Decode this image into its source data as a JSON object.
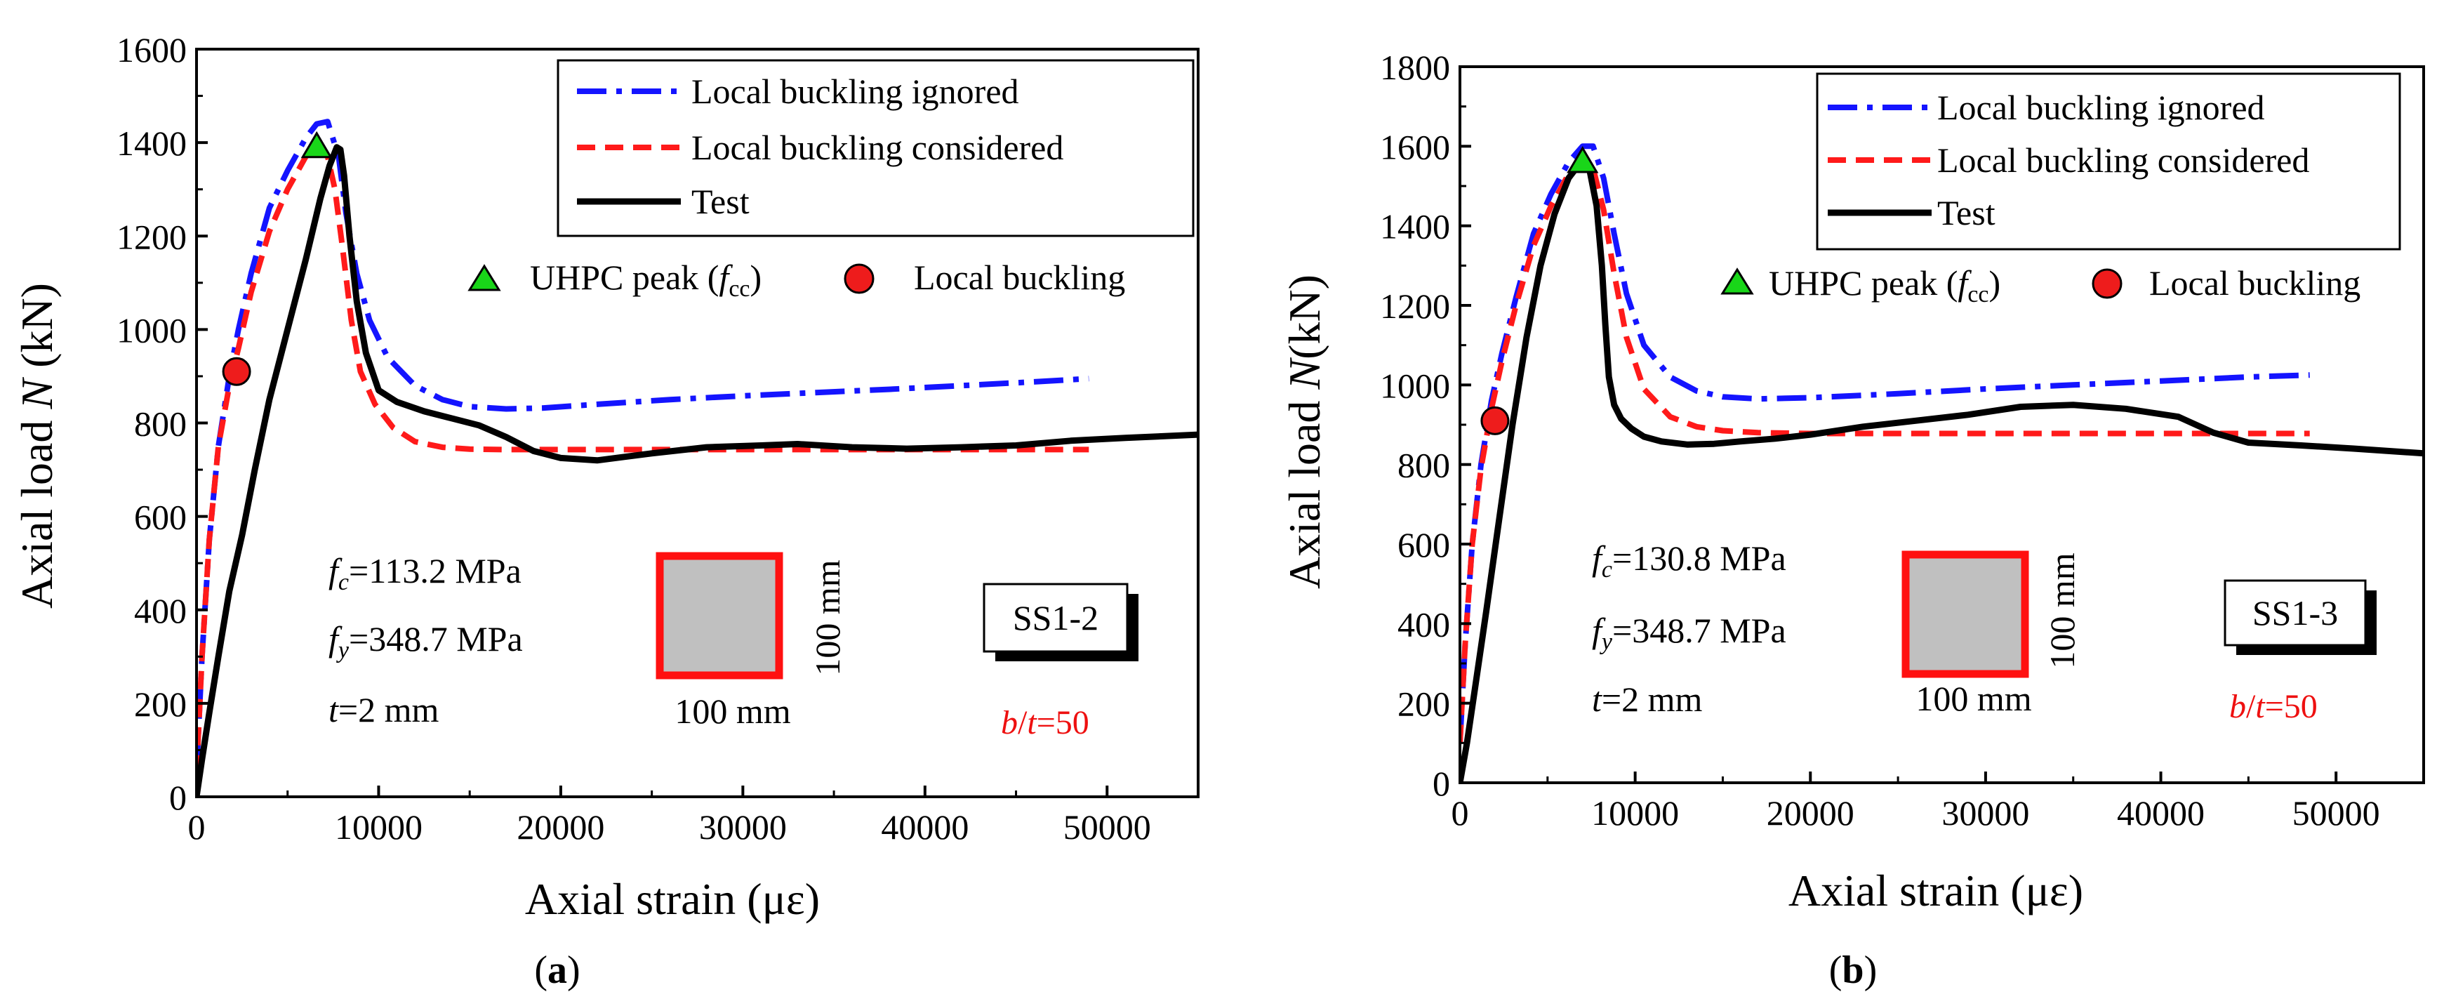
{
  "colors": {
    "ignored": "#1414ff",
    "considered": "#ff1a1a",
    "test": "#000000",
    "peak_marker": "#19d619",
    "buckling_marker": "#ee1c1c",
    "section_fill": "#c0c0c0",
    "section_border": "#ff1010",
    "bt_text": "#ee1010"
  },
  "chart_data": [
    {
      "type": "line",
      "panel_label": "a",
      "xlabel": "Axial strain (με)",
      "ylabel_prefix": "Axial load ",
      "ylabel_var": "N",
      "ylabel_suffix": " (kN)",
      "xlim": [
        0,
        55000
      ],
      "ylim": [
        0,
        1600
      ],
      "xticks": [
        0,
        10000,
        20000,
        30000,
        40000,
        50000
      ],
      "yticks": [
        0,
        200,
        400,
        600,
        800,
        1000,
        1200,
        1400,
        1600
      ],
      "legend": {
        "ignored": "Local buckling ignored",
        "considered": "Local buckling considered",
        "test": "Test"
      },
      "marker_legend": {
        "peak_pre": "UHPC peak (",
        "peak_var": "f",
        "peak_sub": "cc",
        "peak_post": ")",
        "buckling": "Local buckling"
      },
      "props": {
        "fc_var": "f",
        "fc_sub": "c",
        "fc_val": "=113.2 MPa",
        "fy_var": "f",
        "fy_sub": "y",
        "fy_val": "=348.7 MPa",
        "t_var": "t",
        "t_val": "=2 mm"
      },
      "section": {
        "width_label": "100 mm",
        "height_label": "100 mm"
      },
      "specimen": "SS1-2",
      "bt": {
        "b": "b",
        "slash": "/",
        "t": "t",
        "val": "=50"
      },
      "series": [
        {
          "name": "Local buckling ignored",
          "key": "ignored",
          "x": [
            0,
            300,
            700,
            1200,
            1800,
            2300,
            3000,
            4000,
            5000,
            6000,
            6600,
            7200,
            7800,
            8200,
            8800,
            9500,
            10500,
            12000,
            13500,
            15000,
            17000,
            19000,
            22000,
            26000,
            30000,
            34000,
            38000,
            42000,
            46000,
            49000
          ],
          "y": [
            50,
            300,
            550,
            750,
            900,
            1000,
            1120,
            1260,
            1340,
            1410,
            1440,
            1445,
            1370,
            1250,
            1120,
            1020,
            940,
            880,
            850,
            835,
            830,
            832,
            840,
            850,
            858,
            865,
            872,
            880,
            888,
            895
          ]
        },
        {
          "name": "Local buckling considered",
          "key": "considered",
          "x": [
            0,
            300,
            700,
            1200,
            1800,
            2300,
            3000,
            4000,
            5000,
            6000,
            6600,
            7200,
            7600,
            8000,
            8500,
            9000,
            9800,
            10800,
            12000,
            13500,
            15000,
            17000,
            20000,
            25000,
            30000,
            35000,
            40000,
            45000,
            49000
          ],
          "y": [
            50,
            300,
            550,
            750,
            880,
            960,
            1080,
            1210,
            1300,
            1370,
            1390,
            1370,
            1300,
            1180,
            1020,
            910,
            840,
            790,
            760,
            748,
            744,
            743,
            743,
            743,
            743,
            743,
            743,
            743,
            743
          ]
        },
        {
          "name": "Test",
          "key": "test",
          "x": [
            0,
            300,
            700,
            1200,
            1800,
            2500,
            3200,
            4000,
            5000,
            6000,
            6800,
            7300,
            7700,
            7900,
            8100,
            8400,
            8800,
            9300,
            10000,
            11000,
            12500,
            14000,
            15500,
            17000,
            18500,
            20000,
            22000,
            25000,
            28000,
            31000,
            33000,
            36000,
            39000,
            42000,
            45000,
            48000,
            51000,
            55000
          ],
          "y": [
            0,
            80,
            180,
            300,
            440,
            560,
            700,
            850,
            1000,
            1150,
            1280,
            1350,
            1390,
            1385,
            1330,
            1200,
            1060,
            950,
            870,
            845,
            825,
            810,
            795,
            770,
            740,
            725,
            720,
            735,
            748,
            752,
            755,
            748,
            745,
            748,
            752,
            762,
            768,
            775
          ]
        }
      ],
      "peak_point": [
        6600,
        1390
      ],
      "buckling_point": [
        2200,
        910
      ]
    },
    {
      "type": "line",
      "panel_label": "b",
      "xlabel": "Axial strain (με)",
      "ylabel_prefix": "Axial load ",
      "ylabel_var": "N",
      "ylabel_suffix": "(kN)",
      "xlim": [
        0,
        55000
      ],
      "ylim": [
        0,
        1800
      ],
      "xticks": [
        0,
        10000,
        20000,
        30000,
        40000,
        50000
      ],
      "yticks": [
        0,
        200,
        400,
        600,
        800,
        1000,
        1200,
        1400,
        1600,
        1800
      ],
      "legend": {
        "ignored": "Local buckling ignored",
        "considered": "Local buckling considered",
        "test": "Test"
      },
      "marker_legend": {
        "peak_pre": "UHPC peak (",
        "peak_var": "f",
        "peak_sub": "cc",
        "peak_post": ")",
        "buckling": "Local buckling"
      },
      "props": {
        "fc_var": "f",
        "fc_sub": "c",
        "fc_val": "=130.8 MPa",
        "fy_var": "f",
        "fy_sub": "y",
        "fy_val": "=348.7 MPa",
        "t_var": "t",
        "t_val": "=2 mm"
      },
      "section": {
        "width_label": "100 mm",
        "height_label": "100 mm"
      },
      "specimen": "SS1-3",
      "bt": {
        "b": "b",
        "slash": "/",
        "t": "t",
        "val": "=50"
      },
      "series": [
        {
          "name": "Local buckling ignored",
          "key": "ignored",
          "x": [
            0,
            300,
            700,
            1200,
            1800,
            2400,
            3200,
            4200,
            5200,
            6200,
            7000,
            7600,
            8200,
            8800,
            9500,
            10500,
            12000,
            13500,
            15000,
            17000,
            20000,
            25000,
            30000,
            35000,
            40000,
            45000,
            48500
          ],
          "y": [
            100,
            350,
            600,
            800,
            960,
            1080,
            1220,
            1380,
            1480,
            1560,
            1600,
            1600,
            1520,
            1380,
            1230,
            1100,
            1020,
            985,
            970,
            965,
            968,
            978,
            990,
            1000,
            1010,
            1020,
            1025
          ]
        },
        {
          "name": "Local buckling considered",
          "key": "considered",
          "x": [
            0,
            300,
            700,
            1200,
            1800,
            2400,
            3200,
            4200,
            5200,
            6200,
            7000,
            7600,
            8200,
            8800,
            9500,
            10500,
            12000,
            13500,
            15000,
            17000,
            20000,
            25000,
            30000,
            35000,
            40000,
            45000,
            48500
          ],
          "y": [
            100,
            350,
            600,
            790,
            940,
            1060,
            1200,
            1350,
            1450,
            1530,
            1560,
            1545,
            1440,
            1280,
            1120,
            990,
            920,
            895,
            885,
            880,
            878,
            878,
            878,
            878,
            878,
            878,
            878
          ]
        },
        {
          "name": "Test",
          "key": "test",
          "x": [
            0,
            400,
            900,
            1500,
            2200,
            3000,
            3800,
            4600,
            5400,
            6200,
            6900,
            7400,
            7800,
            8100,
            8300,
            8500,
            8800,
            9200,
            9800,
            10500,
            11500,
            13000,
            14500,
            16000,
            18000,
            20000,
            23000,
            26000,
            29000,
            32000,
            35000,
            38000,
            41000,
            43000,
            45000,
            48000,
            51000,
            55000
          ],
          "y": [
            0,
            100,
            250,
            430,
            650,
            900,
            1120,
            1300,
            1430,
            1520,
            1560,
            1540,
            1450,
            1300,
            1150,
            1020,
            950,
            915,
            890,
            870,
            858,
            850,
            852,
            858,
            865,
            875,
            895,
            910,
            925,
            945,
            950,
            940,
            920,
            880,
            855,
            848,
            840,
            828
          ]
        }
      ],
      "peak_point": [
        7000,
        1560
      ],
      "buckling_point": [
        2000,
        910
      ]
    }
  ]
}
